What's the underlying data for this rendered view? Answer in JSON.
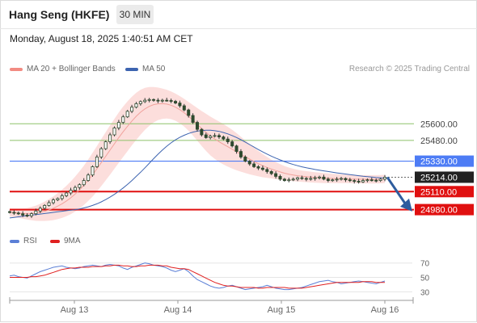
{
  "header": {
    "title": "Hang Seng (HKFE)",
    "interval": "30 MIN"
  },
  "datetime": "Monday, August 18, 2025 1:40:51 AM CET",
  "legend": {
    "bollinger": {
      "label": "MA 20 + Bollinger Bands",
      "color": "#f28b82"
    },
    "ma50": {
      "label": "MA 50",
      "color": "#3d64b0"
    }
  },
  "credit": "Research © 2025 Trading Central",
  "rsi_legend": {
    "rsi": {
      "label": "RSI",
      "color": "#5b7fd6"
    },
    "ma9": {
      "label": "9MA",
      "color": "#e02020"
    }
  },
  "chart_data": {
    "type": "candlestick",
    "price_ylim": [
      24890,
      25940
    ],
    "x_tick_labels": [
      "Aug 13",
      "Aug 14",
      "Aug 15",
      "Aug 16"
    ],
    "levels": [
      {
        "label": "25600.00",
        "value": 25600,
        "style": "green-line",
        "color": "#8ec26a"
      },
      {
        "label": "25480.00",
        "value": 25480,
        "style": "green-line",
        "color": "#8ec26a"
      },
      {
        "label": "25330.00",
        "value": 25330,
        "style": "blue-box",
        "color": "#4d7cf5"
      },
      {
        "label": "25214.00",
        "value": 25214,
        "style": "last-price",
        "color": "#222222"
      },
      {
        "label": "25110.00",
        "value": 25110,
        "style": "red-box",
        "color": "#e01010"
      },
      {
        "label": "24980.00",
        "value": 24980,
        "style": "red-box",
        "color": "#e01010"
      }
    ],
    "close": [
      24960,
      24955,
      24950,
      24940,
      24935,
      24950,
      24970,
      24990,
      25010,
      25030,
      25050,
      25060,
      25080,
      25100,
      25120,
      25140,
      25160,
      25190,
      25230,
      25290,
      25360,
      25420,
      25470,
      25520,
      25570,
      25610,
      25650,
      25690,
      25720,
      25745,
      25760,
      25770,
      25775,
      25770,
      25765,
      25770,
      25768,
      25762,
      25750,
      25730,
      25700,
      25660,
      25610,
      25560,
      25520,
      25500,
      25510,
      25515,
      25505,
      25490,
      25470,
      25440,
      25400,
      25360,
      25330,
      25310,
      25290,
      25280,
      25270,
      25255,
      25240,
      25220,
      25200,
      25190,
      25195,
      25200,
      25210,
      25205,
      25200,
      25205,
      25210,
      25215,
      25200,
      25190,
      25195,
      25200,
      25205,
      25195,
      25190,
      25185,
      25180,
      25190,
      25195,
      25192,
      25190,
      25200,
      25214
    ],
    "ma50": [
      24920,
      24924,
      24928,
      24932,
      24936,
      24940,
      24944,
      24948,
      24952,
      24956,
      24960,
      24964,
      24968,
      24972,
      24976,
      24980,
      24985,
      24992,
      25000,
      25010,
      25022,
      25036,
      25052,
      25070,
      25090,
      25112,
      25136,
      25162,
      25190,
      25220,
      25250,
      25282,
      25315,
      25348,
      25380,
      25410,
      25438,
      25462,
      25484,
      25502,
      25517,
      25530,
      25540,
      25547,
      25551,
      25553,
      25553,
      25550,
      25545,
      25537,
      25527,
      25515,
      25501,
      25485,
      25468,
      25450,
      25432,
      25414,
      25397,
      25381,
      25366,
      25352,
      25339,
      25327,
      25316,
      25306,
      25297,
      25289,
      25282,
      25276,
      25270,
      25265,
      25260,
      25255,
      25250,
      25245,
      25241,
      25237,
      25233,
      25229,
      25225,
      25221,
      25218,
      25215,
      25212,
      25210,
      25208
    ],
    "ma20": [
      24960,
      24958,
      24955,
      24952,
      24950,
      24951,
      24954,
      24960,
      24968,
      24978,
      24990,
      25005,
      25022,
      25042,
      25065,
      25092,
      25122,
      25155,
      25192,
      25232,
      25275,
      25320,
      25365,
      25410,
      25455,
      25500,
      25542,
      25582,
      25620,
      25654,
      25684,
      25708,
      25726,
      25738,
      25744,
      25745,
      25742,
      25734,
      25720,
      25702,
      25680,
      25654,
      25626,
      25596,
      25566,
      25538,
      25512,
      25490,
      25470,
      25452,
      25434,
      25416,
      25398,
      25380,
      25362,
      25345,
      25328,
      25312,
      25298,
      25285,
      25273,
      25262,
      25252,
      25243,
      25236,
      25230,
      25225,
      25221,
      25218,
      25215,
      25212,
      25210,
      25208,
      25206,
      25205,
      25204,
      25203,
      25202,
      25201,
      25200,
      25200,
      25199,
      25199,
      25199,
      25199,
      25200,
      25201
    ],
    "bb_width": [
      30,
      32,
      34,
      38,
      42,
      48,
      55,
      62,
      70,
      78,
      86,
      94,
      102,
      110,
      118,
      126,
      134,
      142,
      150,
      158,
      164,
      170,
      174,
      178,
      180,
      182,
      182,
      180,
      176,
      170,
      162,
      152,
      140,
      128,
      118,
      110,
      104,
      100,
      98,
      98,
      100,
      104,
      110,
      118,
      126,
      134,
      140,
      144,
      146,
      146,
      144,
      140,
      134,
      126,
      118,
      110,
      100,
      92,
      84,
      76,
      68,
      62,
      56,
      52,
      48,
      45,
      43,
      41,
      40,
      39,
      38,
      37,
      36,
      35,
      34,
      33,
      32,
      31,
      30,
      30,
      30,
      30,
      30,
      30,
      30,
      30,
      30
    ],
    "rsi": [
      52,
      53,
      51,
      50,
      49,
      52,
      55,
      58,
      60,
      62,
      64,
      65,
      66,
      64,
      63,
      62,
      63,
      65,
      66,
      67,
      66,
      65,
      67,
      68,
      67,
      66,
      63,
      61,
      64,
      66,
      68,
      70,
      69,
      67,
      66,
      65,
      63,
      60,
      58,
      60,
      62,
      58,
      52,
      47,
      44,
      41,
      38,
      36,
      35,
      36,
      38,
      39,
      37,
      35,
      33,
      34,
      35,
      36,
      37,
      39,
      37,
      35,
      34,
      33,
      33,
      34,
      35,
      36,
      38,
      40,
      42,
      44,
      45,
      46,
      44,
      43,
      41,
      42,
      43,
      44,
      45,
      44,
      43,
      42,
      41,
      43,
      45
    ],
    "rsi_ma": [
      50,
      50,
      50,
      50,
      50,
      51,
      51,
      52,
      53,
      55,
      57,
      59,
      61,
      62,
      63,
      63,
      64,
      64,
      64,
      65,
      65,
      65,
      66,
      66,
      67,
      67,
      66,
      66,
      65,
      65,
      66,
      66,
      67,
      67,
      67,
      66,
      66,
      64,
      63,
      62,
      62,
      61,
      58,
      55,
      52,
      49,
      46,
      43,
      41,
      39,
      38,
      38,
      37,
      36,
      36,
      36,
      36,
      35,
      35,
      36,
      36,
      36,
      36,
      36,
      35,
      35,
      35,
      35,
      36,
      37,
      38,
      39,
      40,
      41,
      42,
      43,
      43,
      43,
      43,
      43,
      43,
      44,
      44,
      44,
      43,
      43,
      43
    ],
    "rsi_ticks": [
      70,
      50,
      30
    ],
    "rsi_ylim": [
      18,
      82
    ]
  }
}
